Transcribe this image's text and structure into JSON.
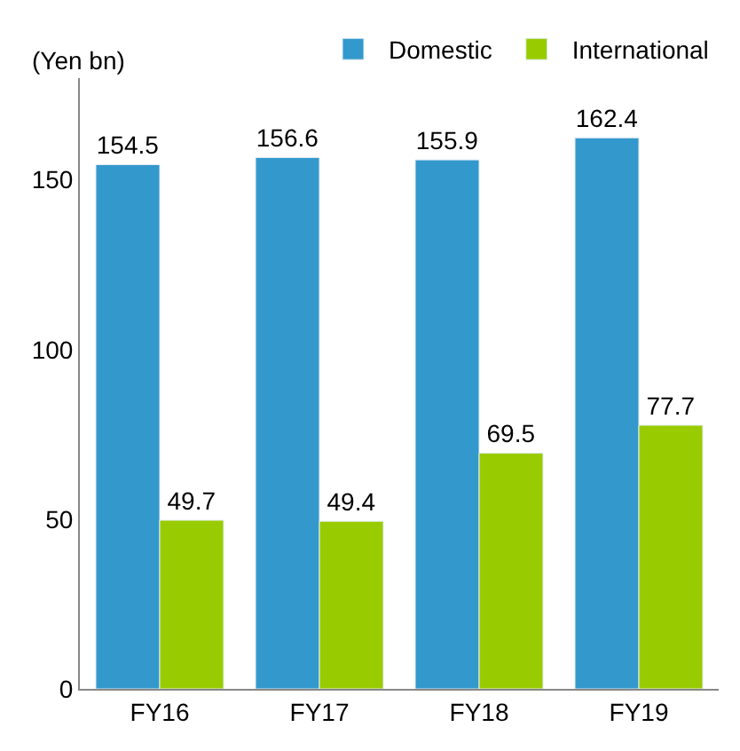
{
  "chart_data": {
    "type": "bar",
    "categories": [
      "FY16",
      "FY17",
      "FY18",
      "FY19"
    ],
    "series": [
      {
        "name": "Domestic",
        "color": "#3399cc",
        "values": [
          154.5,
          156.6,
          155.9,
          162.4
        ]
      },
      {
        "name": "International",
        "color": "#99cc00",
        "values": [
          49.7,
          49.4,
          69.5,
          77.7
        ]
      }
    ],
    "ylim": [
      0,
      180
    ],
    "yticks": [
      0,
      50,
      100,
      150
    ],
    "data_labels": true,
    "legend": "top",
    "annotations": [
      "(Yen bn)"
    ]
  }
}
